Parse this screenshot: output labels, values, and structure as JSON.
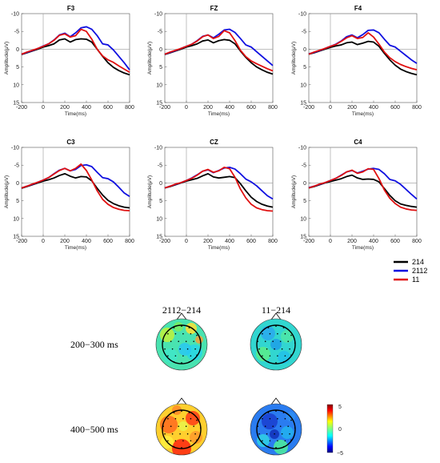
{
  "chart_data": {
    "erp": {
      "type": "line",
      "xlabel": "Time(ms)",
      "ylabel": "Amplitude(μV)",
      "xlim": [
        -200,
        800
      ],
      "ylim": [
        -10,
        15
      ],
      "y_inverted": true,
      "xticks": [
        -200,
        0,
        200,
        400,
        600,
        800
      ],
      "yticks": [
        -10,
        -5,
        0,
        5,
        10,
        15
      ],
      "x": [
        -200,
        -150,
        -100,
        -50,
        0,
        50,
        100,
        150,
        200,
        250,
        300,
        350,
        400,
        450,
        500,
        550,
        600,
        650,
        700,
        750,
        800
      ],
      "series_colors": {
        "214": "#000000",
        "2112": "#1010e0",
        "11": "#e01010"
      },
      "legend": [
        "214",
        "2112",
        "11"
      ],
      "panels": [
        {
          "title": "F3",
          "series": [
            {
              "name": "214",
              "values": [
                1.5,
                1.0,
                0.5,
                0.0,
                -0.6,
                -1.0,
                -1.5,
                -2.6,
                -2.9,
                -2.0,
                -2.7,
                -2.9,
                -2.8,
                -2.0,
                0.0,
                2.0,
                3.8,
                5.1,
                6.0,
                6.7,
                7.2
              ]
            },
            {
              "name": "2112",
              "values": [
                1.4,
                0.9,
                0.4,
                -0.2,
                -0.9,
                -1.5,
                -2.6,
                -4.0,
                -4.5,
                -3.5,
                -4.6,
                -6.0,
                -6.3,
                -5.6,
                -3.8,
                -1.5,
                -1.2,
                0.2,
                2.0,
                3.8,
                5.8
              ]
            },
            {
              "name": "11",
              "values": [
                1.4,
                0.8,
                0.3,
                -0.2,
                -0.8,
                -1.5,
                -2.5,
                -3.9,
                -4.3,
                -3.4,
                -3.8,
                -5.6,
                -5.0,
                -2.8,
                0.0,
                1.9,
                3.0,
                3.7,
                4.7,
                5.6,
                6.5
              ]
            }
          ]
        },
        {
          "title": "FZ",
          "series": [
            {
              "name": "214",
              "values": [
                1.5,
                1.0,
                0.5,
                0.0,
                -0.6,
                -1.0,
                -1.5,
                -2.3,
                -2.6,
                -1.8,
                -2.4,
                -2.7,
                -2.5,
                -1.5,
                0.5,
                2.3,
                3.8,
                5.0,
                5.8,
                6.5,
                7.0
              ]
            },
            {
              "name": "2112",
              "values": [
                1.4,
                0.9,
                0.4,
                -0.2,
                -0.8,
                -1.4,
                -2.4,
                -3.6,
                -4.0,
                -3.2,
                -4.2,
                -5.4,
                -5.6,
                -4.7,
                -3.0,
                -1.2,
                -0.6,
                0.7,
                2.0,
                3.3,
                4.6
              ]
            },
            {
              "name": "11",
              "values": [
                1.4,
                0.8,
                0.3,
                -0.2,
                -0.8,
                -1.4,
                -2.3,
                -3.5,
                -4.0,
                -3.0,
                -3.6,
                -5.2,
                -4.6,
                -2.4,
                0.3,
                2.1,
                3.3,
                4.1,
                4.8,
                5.5,
                6.1
              ]
            }
          ]
        },
        {
          "title": "F4",
          "series": [
            {
              "name": "214",
              "values": [
                1.4,
                1.0,
                0.5,
                0.0,
                -0.5,
                -0.9,
                -1.2,
                -1.8,
                -2.0,
                -1.3,
                -1.7,
                -2.2,
                -2.0,
                -0.8,
                1.2,
                3.0,
                4.5,
                5.6,
                6.3,
                6.8,
                7.2
              ]
            },
            {
              "name": "2112",
              "values": [
                1.3,
                0.9,
                0.4,
                -0.2,
                -0.8,
                -1.4,
                -2.3,
                -3.5,
                -4.0,
                -3.2,
                -4.1,
                -5.3,
                -5.4,
                -4.6,
                -2.8,
                -1.1,
                -0.6,
                0.6,
                1.8,
                3.0,
                4.0
              ]
            },
            {
              "name": "11",
              "values": [
                1.4,
                0.8,
                0.3,
                -0.2,
                -0.8,
                -1.3,
                -2.2,
                -3.2,
                -3.8,
                -3.0,
                -3.3,
                -4.6,
                -3.4,
                -1.4,
                0.8,
                2.4,
                3.5,
                4.3,
                4.9,
                5.4,
                5.8
              ]
            }
          ]
        },
        {
          "title": "C3",
          "series": [
            {
              "name": "214",
              "values": [
                1.5,
                1.0,
                0.5,
                0.0,
                -0.5,
                -0.9,
                -1.4,
                -2.1,
                -2.6,
                -1.9,
                -1.4,
                -1.8,
                -1.7,
                -0.6,
                1.5,
                3.4,
                4.9,
                5.8,
                6.4,
                6.8,
                7.0
              ]
            },
            {
              "name": "2112",
              "values": [
                1.4,
                0.9,
                0.4,
                -0.2,
                -0.8,
                -1.5,
                -2.6,
                -3.6,
                -4.1,
                -3.4,
                -3.8,
                -4.9,
                -5.1,
                -4.6,
                -3.0,
                -1.5,
                -1.2,
                -0.3,
                1.2,
                2.8,
                3.8
              ]
            },
            {
              "name": "11",
              "values": [
                1.4,
                0.9,
                0.3,
                -0.2,
                -0.8,
                -1.5,
                -2.5,
                -3.5,
                -4.1,
                -3.4,
                -4.1,
                -5.3,
                -3.5,
                -0.8,
                2.2,
                4.6,
                6.0,
                6.9,
                7.4,
                7.7,
                7.8
              ]
            }
          ]
        },
        {
          "title": "CZ",
          "series": [
            {
              "name": "214",
              "values": [
                1.4,
                1.0,
                0.5,
                0.0,
                -0.5,
                -0.9,
                -1.3,
                -2.0,
                -2.6,
                -1.7,
                -1.4,
                -1.6,
                -1.8,
                -1.5,
                0.2,
                2.2,
                4.0,
                5.2,
                6.0,
                6.5,
                6.8
              ]
            },
            {
              "name": "2112",
              "values": [
                1.4,
                0.9,
                0.4,
                -0.1,
                -0.7,
                -1.4,
                -2.3,
                -3.3,
                -3.7,
                -2.9,
                -3.5,
                -4.2,
                -4.4,
                -3.9,
                -2.6,
                -1.1,
                -0.3,
                0.8,
                2.2,
                3.6,
                4.5
              ]
            },
            {
              "name": "11",
              "values": [
                1.4,
                0.9,
                0.3,
                -0.1,
                -0.7,
                -1.3,
                -2.2,
                -3.3,
                -3.8,
                -3.0,
                -3.4,
                -4.4,
                -4.0,
                -1.6,
                1.7,
                4.2,
                6.0,
                7.0,
                7.5,
                7.8,
                7.9
              ]
            }
          ]
        },
        {
          "title": "C4",
          "series": [
            {
              "name": "214",
              "values": [
                1.4,
                1.0,
                0.5,
                0.0,
                -0.4,
                -0.8,
                -1.2,
                -1.8,
                -2.2,
                -1.4,
                -1.0,
                -1.1,
                -1.0,
                -0.3,
                1.6,
                3.5,
                5.0,
                5.9,
                6.3,
                6.6,
                6.8
              ]
            },
            {
              "name": "2112",
              "values": [
                1.3,
                0.9,
                0.4,
                -0.1,
                -0.7,
                -1.3,
                -2.2,
                -3.1,
                -3.5,
                -2.8,
                -3.3,
                -3.9,
                -4.1,
                -3.8,
                -2.6,
                -1.0,
                -0.6,
                0.4,
                1.8,
                3.2,
                4.5
              ]
            },
            {
              "name": "11",
              "values": [
                1.4,
                0.9,
                0.3,
                -0.1,
                -0.7,
                -1.3,
                -2.1,
                -3.1,
                -3.6,
                -2.7,
                -3.1,
                -4.0,
                -3.8,
                -1.2,
                2.0,
                4.3,
                5.8,
                6.8,
                7.3,
                7.6,
                7.7
              ]
            }
          ]
        }
      ]
    },
    "topographies": {
      "type": "heatmap",
      "col_labels": [
        "2112−214",
        "11−214"
      ],
      "row_labels": [
        "200−300 ms",
        "400−500 ms"
      ],
      "colorbar": {
        "ticks": [
          5,
          0,
          -5
        ],
        "tick_labels": [
          "5",
          "0",
          "−5"
        ]
      },
      "maps": [
        {
          "row": 0,
          "col": 0,
          "tone": "mixed-green-cyan-yellow"
        },
        {
          "row": 0,
          "col": 1,
          "tone": "mostly-cyan-green"
        },
        {
          "row": 1,
          "col": 0,
          "tone": "mostly-yellow-red"
        },
        {
          "row": 1,
          "col": 1,
          "tone": "mostly-blue-cyan"
        }
      ]
    }
  }
}
